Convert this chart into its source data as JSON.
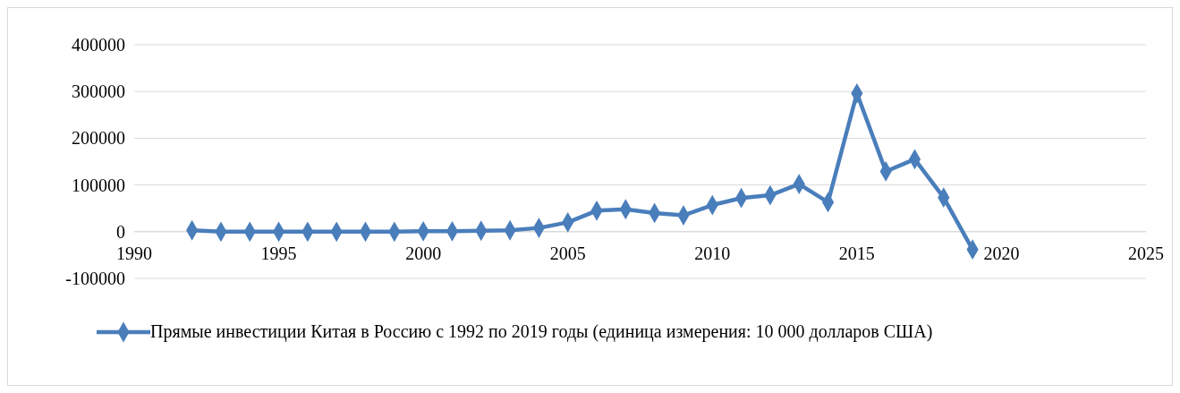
{
  "chart_data": {
    "type": "line",
    "x": [
      1992,
      1993,
      1994,
      1995,
      1996,
      1997,
      1998,
      1999,
      2000,
      2001,
      2002,
      2003,
      2004,
      2005,
      2006,
      2007,
      2008,
      2009,
      2010,
      2011,
      2012,
      2013,
      2014,
      2015,
      2016,
      2017,
      2018,
      2019
    ],
    "series": [
      {
        "name": "Прямые инвестиции Китая в Россию с 1992 по 2019 годы (единица измерения: 10 000 долларов США)",
        "color": "#4a7ebb",
        "values": [
          3000,
          0,
          0,
          0,
          0,
          0,
          0,
          0,
          1000,
          1000,
          2000,
          3000,
          8000,
          20000,
          45000,
          48000,
          40000,
          35000,
          57000,
          72000,
          78000,
          102000,
          63000,
          296000,
          129000,
          155000,
          73000,
          -38000
        ]
      }
    ],
    "xlim": [
      1990,
      2025
    ],
    "xticks": [
      1990,
      1995,
      2000,
      2005,
      2010,
      2015,
      2020,
      2025
    ],
    "ylim": [
      -100000,
      400000
    ],
    "yticks": [
      -100000,
      0,
      100000,
      200000,
      300000,
      400000
    ],
    "grid": "y",
    "legend": "bottom",
    "marker": "diamond",
    "line_style": "solid"
  }
}
